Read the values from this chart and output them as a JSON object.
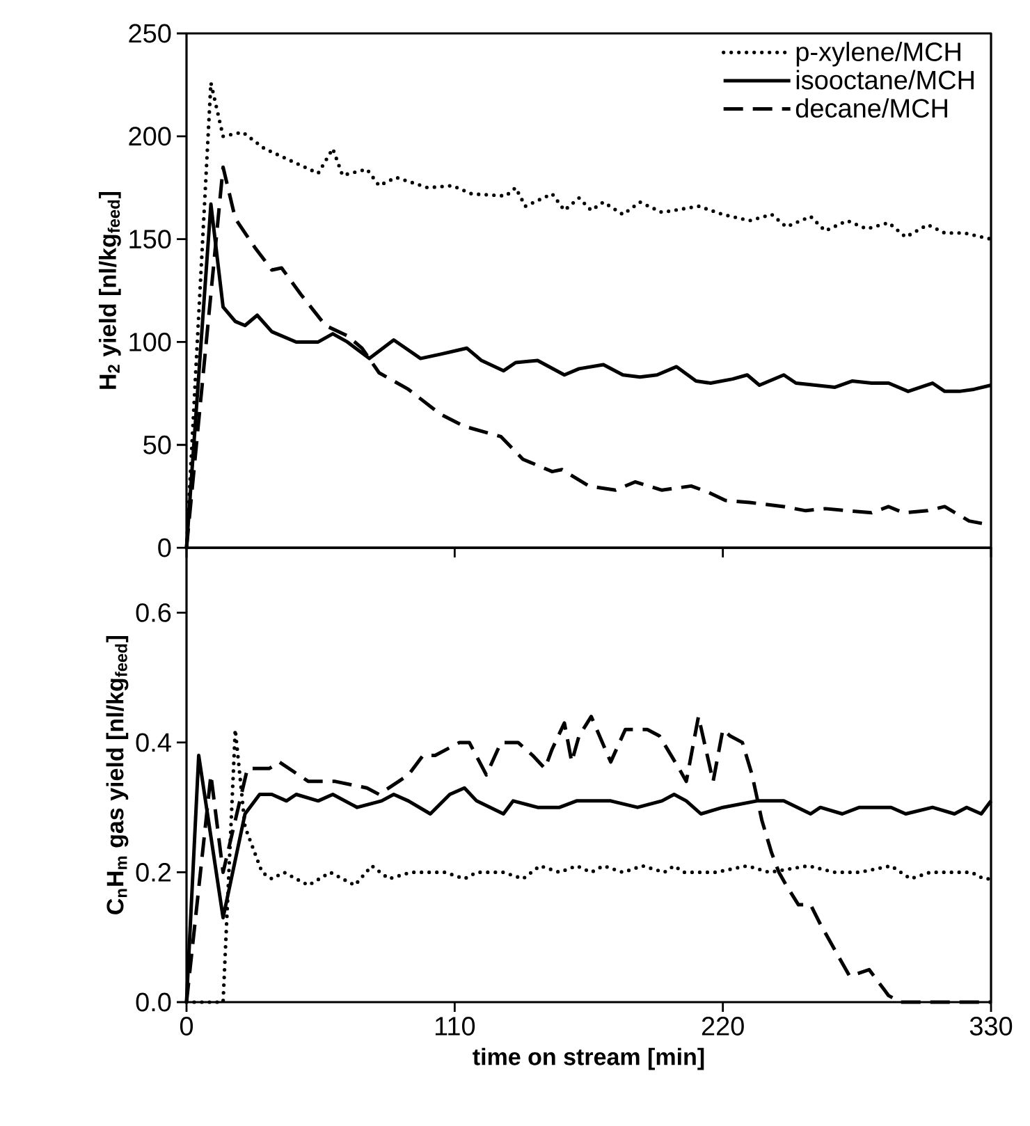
{
  "chart_data": [
    {
      "type": "line",
      "ylabel": "H$_{2}$ yield [nl/kg$_{feed}$]",
      "xlim": [
        0,
        330
      ],
      "xticks": [
        0,
        110,
        220,
        330
      ],
      "ylim": [
        0,
        250
      ],
      "yticks": [
        0,
        50,
        100,
        150,
        200,
        250
      ],
      "tick_labels": "y",
      "legend": "top right",
      "grid": false,
      "marker": "none",
      "series": [
        {
          "name": "p-xylene/MCH",
          "color": "#000000",
          "line_style": "dotted",
          "x": [
            0,
            10,
            15,
            23,
            32,
            43,
            54,
            60,
            64,
            74,
            79,
            86,
            99,
            109,
            117,
            131,
            135,
            139,
            150,
            155,
            161,
            166,
            171,
            179,
            186,
            195,
            210,
            220,
            231,
            240,
            246,
            256,
            262,
            271,
            279,
            288,
            295,
            304,
            311,
            319,
            330
          ],
          "values": [
            0,
            226,
            200,
            202,
            194,
            188,
            182,
            194,
            181,
            184,
            176,
            180,
            175,
            176,
            172,
            171,
            175,
            166,
            172,
            164,
            170,
            164,
            168,
            162,
            168,
            163,
            166,
            162,
            159,
            162,
            156,
            161,
            154,
            159,
            155,
            158,
            151,
            157,
            153,
            153,
            150
          ]
        },
        {
          "name": "isooctane/MCH",
          "color": "#000000",
          "line_style": "solid",
          "x": [
            0,
            10,
            15,
            20,
            24,
            29,
            35,
            45,
            54,
            60,
            66,
            75,
            85,
            96,
            104,
            115,
            121,
            130,
            135,
            144,
            155,
            161,
            171,
            179,
            186,
            193,
            201,
            209,
            215,
            224,
            230,
            235,
            245,
            250,
            258,
            266,
            273,
            281,
            288,
            296,
            306,
            311,
            317,
            323,
            330
          ],
          "values": [
            0,
            167,
            117,
            110,
            108,
            113,
            105,
            100,
            100,
            104,
            100,
            92,
            101,
            92,
            94,
            97,
            91,
            86,
            90,
            91,
            84,
            87,
            89,
            84,
            83,
            84,
            88,
            81,
            80,
            82,
            84,
            79,
            84,
            80,
            79,
            78,
            81,
            80,
            80,
            76,
            80,
            76,
            76,
            77,
            79
          ]
        },
        {
          "name": "decane/MCH",
          "color": "#000000",
          "line_style": "dashed",
          "x": [
            0,
            15,
            20,
            28,
            35,
            39,
            47,
            57,
            66,
            72,
            79,
            91,
            104,
            114,
            129,
            138,
            150,
            154,
            165,
            176,
            184,
            195,
            207,
            214,
            221,
            231,
            245,
            254,
            262,
            271,
            281,
            288,
            294,
            304,
            311,
            321,
            330
          ],
          "values": [
            0,
            185,
            160,
            146,
            135,
            136,
            123,
            108,
            103,
            97,
            85,
            77,
            65,
            59,
            54,
            43,
            37,
            38,
            30,
            28,
            32,
            28,
            30,
            27,
            23,
            22,
            20,
            18,
            19,
            18,
            17,
            20,
            17,
            18,
            20,
            13,
            11
          ]
        }
      ]
    },
    {
      "type": "line",
      "xlabel": "time on stream [min]",
      "ylabel": "C$_{n}$H$_{m}$ gas yield [nl/kg$_{feed}$]",
      "xlim": [
        0,
        330
      ],
      "xticks": [
        0,
        110,
        220,
        330
      ],
      "ylim": [
        0,
        0.7
      ],
      "yticks": [
        {
          "value": 0,
          "label": "0.0"
        },
        {
          "value": 0.2,
          "label": "0.2"
        },
        {
          "value": 0.4,
          "label": "0.4"
        },
        {
          "value": 0.6,
          "label": "0.6"
        }
      ],
      "grid": false,
      "marker": "none",
      "series": [
        {
          "color": "#000000",
          "line_style": "dotted",
          "x": [
            0,
            15,
            20,
            24,
            31,
            35,
            40,
            50,
            59,
            69,
            76,
            83,
            92,
            106,
            114,
            119,
            130,
            138,
            145,
            153,
            160,
            166,
            171,
            179,
            187,
            196,
            200,
            204,
            217,
            230,
            239,
            255,
            266,
            276,
            289,
            297,
            305,
            314,
            322,
            327,
            330
          ],
          "values": [
            0,
            0,
            0.42,
            0.27,
            0.2,
            0.19,
            0.2,
            0.18,
            0.2,
            0.18,
            0.21,
            0.19,
            0.2,
            0.2,
            0.19,
            0.2,
            0.2,
            0.19,
            0.21,
            0.2,
            0.21,
            0.2,
            0.21,
            0.2,
            0.21,
            0.2,
            0.21,
            0.2,
            0.2,
            0.21,
            0.2,
            0.21,
            0.2,
            0.2,
            0.21,
            0.19,
            0.2,
            0.2,
            0.2,
            0.19,
            0.19
          ]
        },
        {
          "color": "#000000",
          "line_style": "solid",
          "x": [
            0,
            5,
            15,
            24,
            30,
            35,
            41,
            45,
            54,
            60,
            70,
            80,
            85,
            91,
            100,
            108,
            114,
            119,
            130,
            134,
            144,
            153,
            160,
            170,
            174,
            185,
            195,
            200,
            205,
            211,
            220,
            234,
            245,
            256,
            260,
            269,
            276,
            289,
            295,
            306,
            315,
            320,
            326,
            330
          ],
          "values": [
            0,
            0.38,
            0.13,
            0.29,
            0.32,
            0.32,
            0.31,
            0.32,
            0.31,
            0.32,
            0.3,
            0.31,
            0.32,
            0.31,
            0.29,
            0.32,
            0.33,
            0.31,
            0.29,
            0.31,
            0.3,
            0.3,
            0.31,
            0.31,
            0.31,
            0.3,
            0.31,
            0.32,
            0.31,
            0.29,
            0.3,
            0.31,
            0.31,
            0.29,
            0.3,
            0.29,
            0.3,
            0.3,
            0.29,
            0.3,
            0.29,
            0.3,
            0.29,
            0.31
          ]
        },
        {
          "color": "#000000",
          "line_style": "dashed",
          "x": [
            0,
            10,
            15,
            25,
            34,
            38,
            46,
            50,
            61,
            74,
            79,
            87,
            91,
            97,
            102,
            112,
            116,
            123,
            129,
            136,
            142,
            147,
            150,
            155,
            158,
            161,
            166,
            174,
            180,
            189,
            194,
            202,
            205,
            210,
            213,
            216,
            220,
            223,
            228,
            232,
            236,
            240,
            243,
            246,
            251,
            256,
            260,
            272,
            280,
            288,
            293,
            310,
            330
          ],
          "values": [
            0,
            0.35,
            0.2,
            0.36,
            0.36,
            0.37,
            0.35,
            0.34,
            0.34,
            0.33,
            0.32,
            0.34,
            0.35,
            0.38,
            0.38,
            0.4,
            0.4,
            0.35,
            0.4,
            0.4,
            0.38,
            0.36,
            0.39,
            0.43,
            0.37,
            0.41,
            0.44,
            0.37,
            0.42,
            0.42,
            0.41,
            0.36,
            0.34,
            0.44,
            0.39,
            0.34,
            0.42,
            0.41,
            0.4,
            0.35,
            0.28,
            0.23,
            0.2,
            0.18,
            0.15,
            0.15,
            0.12,
            0.04,
            0.05,
            0.01,
            0,
            0,
            0
          ]
        }
      ]
    }
  ]
}
